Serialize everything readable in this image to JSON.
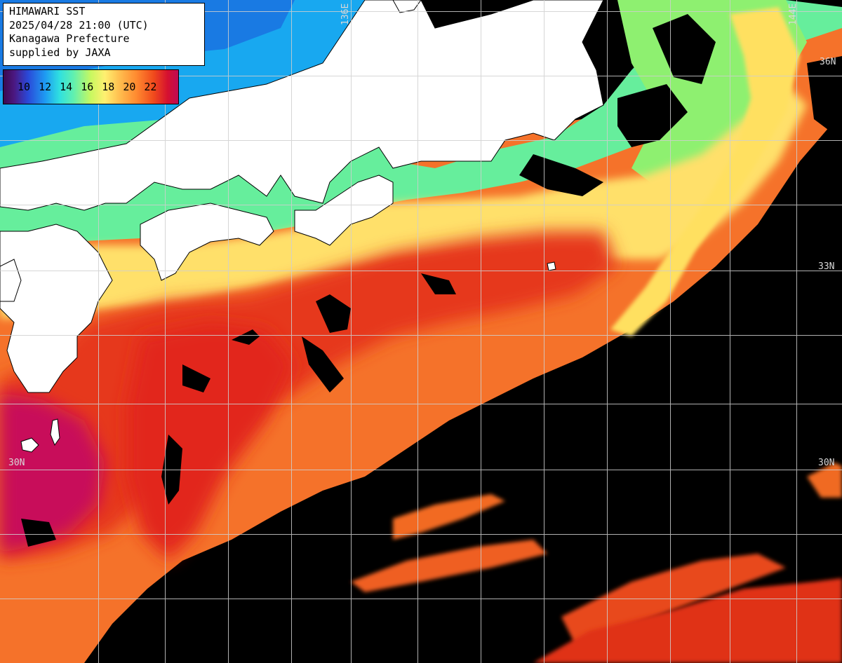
{
  "header": {
    "line1": "HIMAWARI SST",
    "line2": "2025/04/28 21:00 (UTC)",
    "line3": "Kanagawa Prefecture",
    "line4": "supplied by JAXA"
  },
  "legend": {
    "ticks": [
      "10",
      "12",
      "14",
      "16",
      "18",
      "20",
      "22"
    ]
  },
  "grid_labels": {
    "lat_36_right": "36N",
    "lat_33_right": "33N",
    "lat_30_left": "30N",
    "lat_30_right": "30N",
    "lon_136_top": "136E",
    "lon_144_top": "144E"
  },
  "colors": {
    "land": "#ffffff",
    "no_data_cloud": "#000000",
    "grid": "#cfcfcf",
    "sst_cold": "#1ea0f0",
    "sst_cool": "#5ef0a8",
    "sst_mild": "#fff070",
    "sst_warm": "#ff9a3a",
    "sst_hot": "#e8381c",
    "sst_hottest": "#c0105a"
  }
}
